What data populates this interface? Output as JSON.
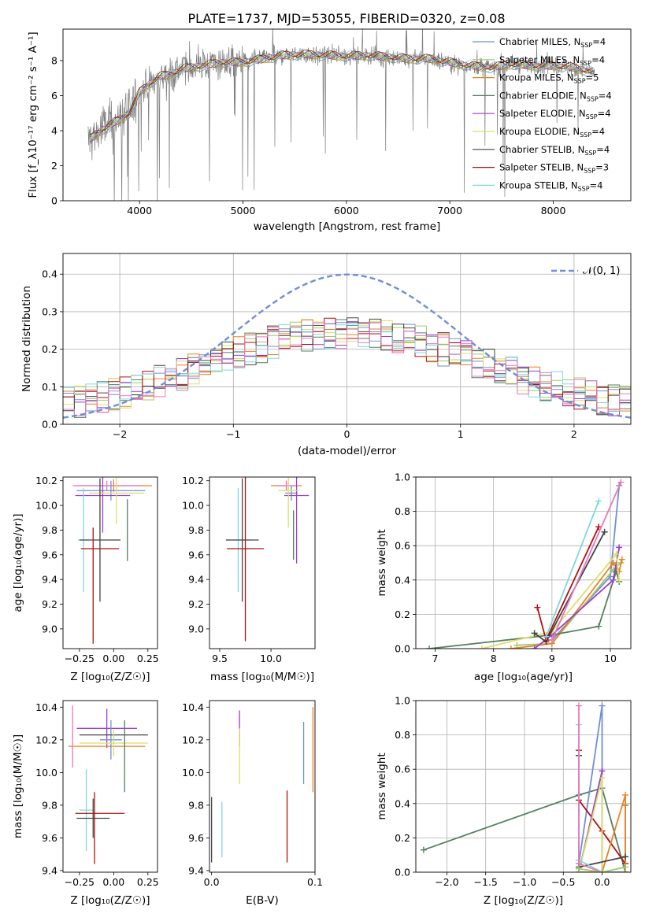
{
  "figure": {
    "title": "PLATE=1737, MJD=53055, FIBERID=0320, z=0.08",
    "colors": {
      "Chabrier MILES": "#6f8fd6",
      "Salpeter MILES": "#9acb6c",
      "Kroupa MILES": "#f07f21",
      "Chabrier ELODIE": "#557f60",
      "Salpeter ELODIE": "#9c3ed0",
      "Kroupa ELODIE": "#d8e068",
      "Chabrier STELIB": "#444444",
      "Salpeter STELIB": "#b01010",
      "Kroupa STELIB": "#7fd8dc",
      "pink": "#e878c0",
      "data": "#7f7f7f"
    }
  },
  "chart_data": [
    {
      "id": "spectrum",
      "type": "line",
      "xlabel": "wavelength [Angstrom, rest frame]",
      "ylabel": "Flux [f_λ10⁻¹⁷ erg cm⁻² s⁻¹ A⁻¹]",
      "xlim": [
        3260,
        8750
      ],
      "ylim": [
        0,
        9.8
      ],
      "xticks": [
        4000,
        5000,
        6000,
        7000,
        8000
      ],
      "yticks": [
        0,
        2,
        4,
        6,
        8
      ],
      "legend_position": "top-right",
      "legend": [
        {
          "name": "Chabrier MILES",
          "nssp": "4"
        },
        {
          "name": "Salpeter MILES",
          "nssp": "4"
        },
        {
          "name": "Kroupa MILES",
          "nssp": "5"
        },
        {
          "name": "Chabrier ELODIE",
          "nssp": "4"
        },
        {
          "name": "Salpeter ELODIE",
          "nssp": "4"
        },
        {
          "name": "Kroupa ELODIE",
          "nssp": "4"
        },
        {
          "name": "Chabrier STELIB",
          "nssp": "4"
        },
        {
          "name": "Salpeter STELIB",
          "nssp": "3"
        },
        {
          "name": "Kroupa STELIB",
          "nssp": "4"
        }
      ],
      "continuum": {
        "x": [
          3500,
          3600,
          3700,
          3800,
          3900,
          4000,
          4100,
          4200,
          4300,
          4400,
          4500,
          4600,
          4700,
          4800,
          4900,
          5000,
          5200,
          5400,
          5600,
          5800,
          6000,
          6200,
          6400,
          6600,
          6800,
          7000,
          7200,
          7400,
          7600,
          7800,
          8000,
          8200,
          8400
        ],
        "y": [
          3.4,
          3.9,
          4.3,
          4.6,
          5.0,
          6.2,
          6.7,
          7.1,
          7.2,
          7.5,
          7.6,
          7.7,
          7.8,
          7.9,
          7.9,
          7.9,
          8.1,
          8.3,
          8.35,
          8.3,
          8.25,
          8.3,
          8.2,
          8.1,
          8.1,
          7.9,
          7.7,
          7.6,
          7.8,
          7.7,
          7.7,
          7.6,
          7.3
        ]
      }
    },
    {
      "id": "residuals",
      "type": "histogram",
      "xlabel": "(data-model)/error",
      "ylabel": "Normed distribution",
      "xlim": [
        -2.5,
        2.5
      ],
      "ylim": [
        0,
        0.455
      ],
      "xticks": [
        -2,
        -1,
        0,
        1,
        2
      ],
      "yticks": [
        0,
        0.1,
        0.2,
        0.3,
        0.4
      ],
      "grid": true,
      "reference_label": "𝒩(0, 1)",
      "legend_position": "top-right",
      "bin_width": 0.1
    },
    {
      "id": "age-vs-z",
      "type": "errorbar",
      "xlabel": "Z [log₁₀(Z/Z☉)]",
      "ylabel": "age  [log₁₀(age/yr)]",
      "xlim": [
        -0.37,
        0.32
      ],
      "ylim": [
        8.84,
        10.23
      ],
      "xticks": [
        -0.25,
        0.0,
        0.25
      ],
      "yticks": [
        9.0,
        9.2,
        9.4,
        9.6,
        9.8,
        10.0,
        10.2
      ],
      "points": [
        {
          "series": "Kroupa MILES",
          "x": 0.0,
          "y": 10.16,
          "xerr": 0.28,
          "yerr": 0.05
        },
        {
          "series": "pink",
          "x": -0.05,
          "y": 10.16,
          "xerr": 0.25,
          "yerr": 0.04
        },
        {
          "series": "Chabrier MILES",
          "x": -0.02,
          "y": 10.12,
          "xerr": 0.25,
          "yerr": 0.08
        },
        {
          "series": "Salpeter ELODIE",
          "x": -0.08,
          "y": 10.08,
          "xerr": 0.2,
          "yerr": 0.3
        },
        {
          "series": "Kroupa ELODIE",
          "x": 0.02,
          "y": 10.1,
          "xerr": 0.2,
          "yerr": 0.25
        },
        {
          "series": "Chabrier ELODIE",
          "x": 0.1,
          "y": 9.8,
          "xerr": 0.0,
          "yerr": 0.25
        },
        {
          "series": "Kroupa STELIB",
          "x": -0.22,
          "y": 9.72,
          "xerr": 0.04,
          "yerr": 0.42
        },
        {
          "series": "Chabrier STELIB",
          "x": -0.1,
          "y": 9.72,
          "xerr": 0.15,
          "yerr": 0.5
        },
        {
          "series": "Salpeter STELIB",
          "x": -0.1,
          "y": 9.65,
          "xerr": 0.14,
          "yerr": 0.0
        },
        {
          "series": "Salpeter STELIB",
          "x": -0.15,
          "y": 9.35,
          "xerr": 0.0,
          "yerr": 0.47
        }
      ]
    },
    {
      "id": "age-vs-mass",
      "type": "errorbar",
      "xlabel": "mass [log₁₀(M/M☉)]",
      "xlim": [
        9.4,
        10.43
      ],
      "ylim": [
        8.84,
        10.23
      ],
      "xticks": [
        9.5,
        10.0
      ],
      "yticks": [
        9.0,
        9.2,
        9.4,
        9.6,
        9.8,
        10.0,
        10.2
      ],
      "points": [
        {
          "series": "Kroupa MILES",
          "x": 10.15,
          "y": 10.16,
          "xerr": 0.15,
          "yerr": 0.04
        },
        {
          "series": "pink",
          "x": 10.15,
          "y": 10.16,
          "xerr": 0.1,
          "yerr": 0.04
        },
        {
          "series": "Chabrier MILES",
          "x": 10.2,
          "y": 10.1,
          "xerr": 0.06,
          "yerr": 0.06
        },
        {
          "series": "Salpeter ELODIE",
          "x": 10.25,
          "y": 10.08,
          "xerr": 0.12,
          "yerr": 0.55
        },
        {
          "series": "Kroupa ELODIE",
          "x": 10.17,
          "y": 10.12,
          "xerr": 0.1,
          "yerr": 0.3
        },
        {
          "series": "Chabrier ELODIE",
          "x": 10.22,
          "y": 9.76,
          "xerr": 0.0,
          "yerr": 0.2
        },
        {
          "series": "Kroupa STELIB",
          "x": 9.68,
          "y": 9.72,
          "xerr": 0.12,
          "yerr": 0.42
        },
        {
          "series": "Chabrier STELIB",
          "x": 9.72,
          "y": 9.72,
          "xerr": 0.16,
          "yerr": 0.5
        },
        {
          "series": "Salpeter STELIB",
          "x": 9.75,
          "y": 9.65,
          "xerr": 0.18,
          "yerr": 0.75
        }
      ]
    },
    {
      "id": "weight-vs-age",
      "type": "line",
      "xlabel": "age  [log₁₀(age/yr)]",
      "ylabel": "mass weight",
      "xlim": [
        6.67,
        10.35
      ],
      "ylim": [
        0,
        1.0
      ],
      "xticks": [
        7,
        8,
        9,
        10
      ],
      "yticks": [
        0.0,
        0.2,
        0.4,
        0.6,
        0.8,
        1.0
      ],
      "grid": true,
      "series": [
        {
          "name": "Chabrier MILES",
          "x": [
            8.9,
            9.0,
            10.0,
            10.15
          ],
          "y": [
            0.05,
            0.05,
            0.42,
            0.95
          ]
        },
        {
          "name": "Salpeter MILES",
          "x": [
            8.4,
            9.0,
            10.05,
            10.18
          ],
          "y": [
            0.02,
            0.03,
            0.46,
            0.5
          ]
        },
        {
          "name": "Kroupa MILES",
          "x": [
            8.3,
            9.0,
            10.05,
            10.15,
            10.2
          ],
          "y": [
            0.0,
            0.03,
            0.5,
            0.45,
            0.52
          ]
        },
        {
          "name": "Chabrier ELODIE",
          "x": [
            6.9,
            9.0,
            9.8,
            10.1,
            10.15
          ],
          "y": [
            0.0,
            0.08,
            0.13,
            0.45,
            0.39
          ]
        },
        {
          "name": "Salpeter ELODIE",
          "x": [
            8.7,
            9.0,
            10.05,
            10.15
          ],
          "y": [
            0.0,
            0.08,
            0.4,
            0.59
          ]
        },
        {
          "name": "Kroupa ELODIE",
          "x": [
            7.8,
            9.0,
            10.1,
            10.15
          ],
          "y": [
            0.0,
            0.1,
            0.55,
            0.4
          ]
        },
        {
          "name": "Chabrier STELIB",
          "x": [
            8.7,
            8.9,
            9.9
          ],
          "y": [
            0.09,
            0.04,
            0.68
          ]
        },
        {
          "name": "Salpeter STELIB",
          "x": [
            8.75,
            8.9,
            9.8
          ],
          "y": [
            0.24,
            0.05,
            0.71
          ]
        },
        {
          "name": "Kroupa STELIB",
          "x": [
            8.9,
            9.8
          ],
          "y": [
            0.07,
            0.86
          ]
        },
        {
          "name": "pink",
          "x": [
            9.0,
            10.18
          ],
          "y": [
            0.05,
            0.97
          ]
        }
      ]
    },
    {
      "id": "mass-vs-z",
      "type": "errorbar",
      "xlabel": "Z [log₁₀(Z/Z☉)]",
      "ylabel": "mass [log₁₀(M/M☉)]",
      "xlim": [
        -0.37,
        0.32
      ],
      "ylim": [
        9.39,
        10.44
      ],
      "xticks": [
        -0.25,
        0.0,
        0.25
      ],
      "yticks": [
        9.4,
        9.6,
        9.8,
        10.0,
        10.2,
        10.4
      ],
      "points": [
        {
          "series": "pink",
          "x": -0.3,
          "y": 10.22,
          "xerr": 0.0,
          "yerr": 0.19
        },
        {
          "series": "Salpeter ELODIE",
          "x": -0.05,
          "y": 10.27,
          "xerr": 0.22,
          "yerr": 0.12
        },
        {
          "series": "Kroupa MILES",
          "x": -0.05,
          "y": 10.16,
          "xerr": 0.28,
          "yerr": 0.0
        },
        {
          "series": "Chabrier MILES",
          "x": -0.02,
          "y": 10.2,
          "xerr": 0.08,
          "yerr": 0.12
        },
        {
          "series": "Chabrier STELIB",
          "x": 0.0,
          "y": 10.23,
          "xerr": 0.25,
          "yerr": 0.0
        },
        {
          "series": "Kroupa ELODIE",
          "x": 0.0,
          "y": 10.18,
          "xerr": 0.25,
          "yerr": 0.08
        },
        {
          "series": "Chabrier ELODIE",
          "x": 0.08,
          "y": 10.1,
          "xerr": 0.0,
          "yerr": 0.22
        },
        {
          "series": "Kroupa STELIB",
          "x": -0.2,
          "y": 9.77,
          "xerr": 0.05,
          "yerr": 0.25
        },
        {
          "series": "Chabrier STELIB",
          "x": -0.15,
          "y": 9.72,
          "xerr": 0.12,
          "yerr": 0.12
        },
        {
          "series": "Salpeter STELIB",
          "x": -0.1,
          "y": 9.75,
          "xerr": 0.18,
          "yerr": 0.0
        },
        {
          "series": "Salpeter STELIB",
          "x": -0.14,
          "y": 9.66,
          "xerr": 0.0,
          "yerr": 0.22
        }
      ]
    },
    {
      "id": "mass-vs-ebv",
      "type": "errorbar",
      "xlabel": "E(B-V)",
      "xlim": [
        -0.002,
        0.1
      ],
      "ylim": [
        9.39,
        10.44
      ],
      "xticks": [
        0.0,
        0.1
      ],
      "yticks": [
        9.4,
        9.6,
        9.8,
        10.0,
        10.2,
        10.4
      ],
      "points": [
        {
          "series": "Chabrier STELIB",
          "x": 0.0,
          "y": 9.65,
          "xerr": 0.0,
          "yerr": 0.2
        },
        {
          "series": "Kroupa STELIB",
          "x": 0.01,
          "y": 9.65,
          "xerr": 0.0,
          "yerr": 0.17
        },
        {
          "series": "Salpeter ELODIE",
          "x": 0.027,
          "y": 10.27,
          "xerr": 0.0,
          "yerr": 0.11
        },
        {
          "series": "Kroupa ELODIE",
          "x": 0.027,
          "y": 10.1,
          "xerr": 0.0,
          "yerr": 0.17
        },
        {
          "series": "Chabrier ELODIE",
          "x": 0.046,
          "y": 10.18,
          "xerr": 0.0,
          "yerr": 0.0
        },
        {
          "series": "Salpeter STELIB",
          "x": 0.073,
          "y": 9.67,
          "xerr": 0.0,
          "yerr": 0.22
        },
        {
          "series": "Chabrier MILES",
          "x": 0.089,
          "y": 10.12,
          "xerr": 0.0,
          "yerr": 0.19
        },
        {
          "series": "Kroupa MILES",
          "x": 0.098,
          "y": 10.14,
          "xerr": 0.0,
          "yerr": 0.26
        }
      ]
    },
    {
      "id": "weight-vs-z",
      "type": "line",
      "xlabel": "Z [log₁₀(Z/Z☉)]",
      "ylabel": "mass weight",
      "xlim": [
        -2.4,
        0.37
      ],
      "ylim": [
        0,
        1.0
      ],
      "xticks": [
        -2.0,
        -1.5,
        -1.0,
        -0.5,
        0.0
      ],
      "yticks": [
        0.0,
        0.2,
        0.4,
        0.6,
        0.8,
        1.0
      ],
      "grid": true,
      "series": [
        {
          "name": "Chabrier ELODIE",
          "x": [
            -2.3,
            -0.3,
            0.0,
            0.3,
            0.3
          ],
          "y": [
            0.13,
            0.45,
            0.49,
            0.0,
            0.39
          ]
        },
        {
          "name": "Chabrier MILES",
          "x": [
            -0.3,
            0.0,
            0.0,
            0.3
          ],
          "y": [
            0.05,
            0.97,
            0.0,
            0.0
          ]
        },
        {
          "name": "Salpeter STELIB",
          "x": [
            -0.3,
            -0.3,
            0.0,
            0.3
          ],
          "y": [
            0.71,
            0.42,
            0.24,
            0.05
          ]
        },
        {
          "name": "Kroupa MILES",
          "x": [
            -0.3,
            0.0,
            0.3,
            0.3
          ],
          "y": [
            0.0,
            0.0,
            0.45,
            0.0
          ]
        },
        {
          "name": "Salpeter ELODIE",
          "x": [
            -0.3,
            0.0,
            0.0
          ],
          "y": [
            0.0,
            0.59,
            0.0
          ]
        },
        {
          "name": "Kroupa ELODIE",
          "x": [
            -0.3,
            0.0,
            0.0
          ],
          "y": [
            0.0,
            0.55,
            0.0
          ]
        },
        {
          "name": "Chabrier STELIB",
          "x": [
            -0.3,
            -0.3,
            0.3
          ],
          "y": [
            0.68,
            0.03,
            0.09
          ]
        },
        {
          "name": "Kroupa STELIB",
          "x": [
            -0.3,
            -0.3,
            0.0
          ],
          "y": [
            0.86,
            0.07,
            0.0
          ]
        },
        {
          "name": "pink",
          "x": [
            -0.3,
            -0.3,
            0.0
          ],
          "y": [
            0.97,
            0.05,
            0.0
          ]
        },
        {
          "name": "Salpeter MILES",
          "x": [
            -0.3,
            0.0,
            0.3
          ],
          "y": [
            0.02,
            0.0,
            0.03
          ]
        }
      ]
    }
  ]
}
